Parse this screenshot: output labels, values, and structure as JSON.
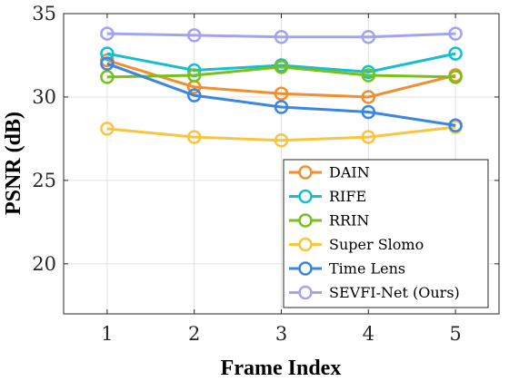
{
  "chart_data": {
    "type": "line",
    "title": "",
    "xlabel": "Frame Index",
    "ylabel": "PSNR (dB)",
    "x": [
      1,
      2,
      3,
      4,
      5
    ],
    "xlim": [
      0.5,
      5.5
    ],
    "ylim": [
      17,
      35
    ],
    "xticks": [
      1,
      2,
      3,
      4,
      5
    ],
    "yticks": [
      20,
      25,
      30,
      35
    ],
    "grid": true,
    "legend_position": "bottom-right",
    "series": [
      {
        "name": "DAIN",
        "color": "#f28e2b",
        "values": [
          32.2,
          30.6,
          30.2,
          30.0,
          31.3
        ]
      },
      {
        "name": "RIFE",
        "color": "#17becf",
        "values": [
          32.6,
          31.6,
          31.9,
          31.5,
          32.6
        ]
      },
      {
        "name": "RRIN",
        "color": "#77c11a",
        "values": [
          31.2,
          31.3,
          31.8,
          31.3,
          31.2
        ]
      },
      {
        "name": "Super Slomo",
        "color": "#f9c440",
        "values": [
          28.1,
          27.6,
          27.4,
          27.6,
          28.2
        ]
      },
      {
        "name": "Time Lens",
        "color": "#3a86e0",
        "values": [
          32.0,
          30.1,
          29.4,
          29.1,
          28.3
        ]
      },
      {
        "name": "SEVFI-Net (Ours)",
        "color": "#a3a3f2",
        "values": [
          33.8,
          33.7,
          33.6,
          33.6,
          33.8
        ]
      }
    ]
  }
}
